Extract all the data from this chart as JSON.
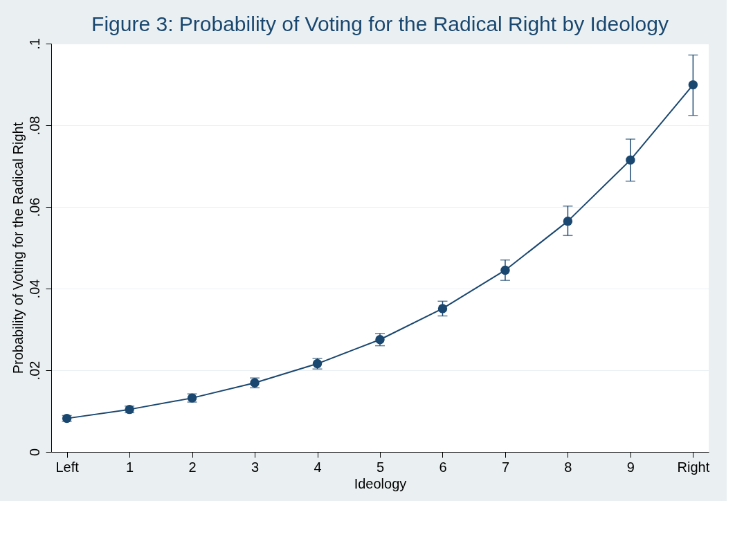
{
  "chart_data": {
    "type": "line",
    "title": "Figure 3: Probability of Voting for the Radical Right by Ideology",
    "xlabel": "Ideology",
    "ylabel": "Probability of Voting for the Radical Right",
    "categories": [
      "Left",
      "1",
      "2",
      "3",
      "4",
      "5",
      "6",
      "7",
      "8",
      "9",
      "Right"
    ],
    "series": [
      {
        "color": "#1a476f",
        "values": [
          0.0082,
          0.0104,
          0.0132,
          0.0169,
          0.0216,
          0.0275,
          0.0351,
          0.0445,
          0.0565,
          0.0715,
          0.0899
        ],
        "errors": [
          [
            0.0075,
            0.0089
          ],
          [
            0.0096,
            0.0112
          ],
          [
            0.0122,
            0.0142
          ],
          [
            0.0157,
            0.0181
          ],
          [
            0.0203,
            0.0229
          ],
          [
            0.026,
            0.029
          ],
          [
            0.0333,
            0.0369
          ],
          [
            0.042,
            0.047
          ],
          [
            0.053,
            0.0602
          ],
          [
            0.0663,
            0.0766
          ],
          [
            0.0824,
            0.0972
          ]
        ]
      }
    ],
    "ylim": [
      0,
      0.1
    ],
    "yticks": [
      0,
      {
        "value": 0.02,
        "label": ".02"
      },
      {
        "value": 0.04,
        "label": ".04"
      },
      {
        "value": 0.06,
        "label": ".06"
      },
      {
        "value": 0.08,
        "label": ".08"
      },
      {
        "value": 0.1,
        "label": ".1"
      }
    ],
    "grid": "y",
    "marker": "circle",
    "line_style": "solid"
  }
}
